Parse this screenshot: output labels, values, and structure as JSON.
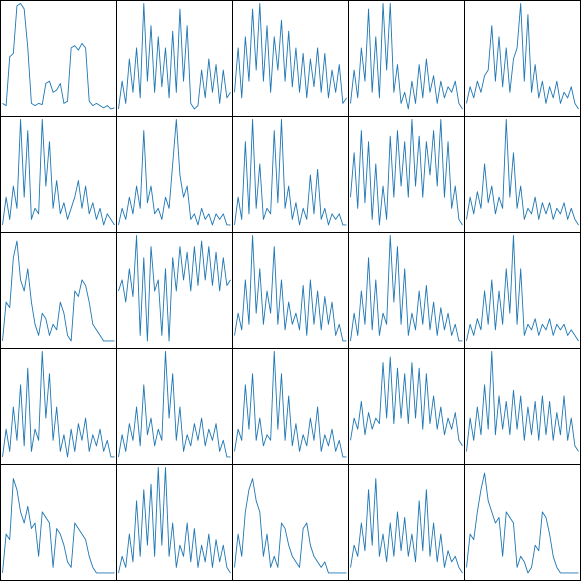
{
  "chart_data": [
    {
      "type": "line",
      "color": "#1f77b4",
      "ylim": [
        0,
        100
      ],
      "values": [
        10,
        8,
        52,
        55,
        98,
        100,
        95,
        60,
        10,
        8,
        10,
        9,
        28,
        30,
        20,
        22,
        28,
        10,
        12,
        60,
        62,
        58,
        64,
        60,
        12,
        8,
        10,
        8,
        6,
        8,
        5,
        6
      ]
    },
    {
      "type": "line",
      "color": "#1f77b4",
      "ylim": [
        0,
        100
      ],
      "values": [
        5,
        30,
        10,
        50,
        20,
        60,
        15,
        100,
        30,
        80,
        20,
        70,
        25,
        60,
        15,
        75,
        20,
        95,
        30,
        80,
        10,
        5,
        8,
        40,
        15,
        50,
        20,
        45,
        10,
        40,
        15,
        20
      ]
    },
    {
      "type": "line",
      "color": "#1f77b4",
      "ylim": [
        0,
        100
      ],
      "values": [
        20,
        60,
        15,
        70,
        30,
        95,
        40,
        100,
        30,
        80,
        20,
        70,
        40,
        85,
        30,
        75,
        25,
        60,
        20,
        55,
        15,
        50,
        25,
        60,
        20,
        55,
        15,
        40,
        20,
        45,
        10,
        15
      ]
    },
    {
      "type": "line",
      "color": "#1f77b4",
      "ylim": [
        0,
        100
      ],
      "values": [
        10,
        40,
        15,
        60,
        30,
        95,
        20,
        70,
        15,
        100,
        40,
        100,
        20,
        45,
        10,
        20,
        5,
        30,
        10,
        45,
        15,
        50,
        20,
        35,
        10,
        30,
        15,
        25,
        20,
        30,
        10,
        5
      ]
    },
    {
      "type": "line",
      "color": "#1f77b4",
      "ylim": [
        0,
        100
      ],
      "values": [
        10,
        25,
        15,
        30,
        20,
        35,
        40,
        80,
        30,
        70,
        25,
        60,
        20,
        50,
        60,
        100,
        30,
        90,
        20,
        45,
        15,
        30,
        10,
        25,
        15,
        30,
        10,
        20,
        15,
        25,
        10,
        5
      ]
    },
    {
      "type": "line",
      "color": "#1f77b4",
      "ylim": [
        0,
        100
      ],
      "values": [
        5,
        30,
        10,
        40,
        20,
        100,
        30,
        90,
        10,
        20,
        15,
        100,
        40,
        80,
        20,
        45,
        15,
        25,
        10,
        20,
        30,
        45,
        20,
        40,
        15,
        25,
        10,
        20,
        5,
        15,
        10,
        5
      ]
    },
    {
      "type": "line",
      "color": "#1f77b4",
      "ylim": [
        0,
        100
      ],
      "values": [
        5,
        20,
        10,
        30,
        15,
        40,
        20,
        90,
        25,
        40,
        15,
        20,
        10,
        30,
        20,
        60,
        100,
        50,
        30,
        40,
        10,
        15,
        5,
        20,
        10,
        15,
        5,
        15,
        10,
        15,
        5,
        5
      ]
    },
    {
      "type": "line",
      "color": "#1f77b4",
      "ylim": [
        0,
        100
      ],
      "values": [
        5,
        30,
        10,
        80,
        15,
        100,
        20,
        60,
        10,
        20,
        15,
        90,
        25,
        100,
        20,
        40,
        10,
        25,
        5,
        20,
        10,
        50,
        15,
        55,
        10,
        20,
        5,
        15,
        10,
        15,
        5,
        5
      ]
    },
    {
      "type": "line",
      "color": "#1f77b4",
      "ylim": [
        0,
        100
      ],
      "values": [
        30,
        70,
        20,
        90,
        25,
        80,
        10,
        60,
        5,
        40,
        10,
        85,
        30,
        90,
        40,
        80,
        30,
        100,
        40,
        85,
        30,
        80,
        50,
        90,
        40,
        100,
        30,
        80,
        20,
        40,
        10,
        5
      ]
    },
    {
      "type": "line",
      "color": "#1f77b4",
      "ylim": [
        0,
        100
      ],
      "values": [
        10,
        30,
        15,
        35,
        20,
        60,
        25,
        40,
        15,
        30,
        20,
        100,
        30,
        70,
        20,
        40,
        10,
        20,
        15,
        30,
        10,
        25,
        15,
        25,
        10,
        20,
        15,
        25,
        10,
        20,
        10,
        5
      ]
    },
    {
      "type": "line",
      "color": "#1f77b4",
      "ylim": [
        0,
        100
      ],
      "values": [
        5,
        40,
        35,
        80,
        95,
        60,
        50,
        70,
        40,
        20,
        10,
        30,
        25,
        10,
        20,
        15,
        40,
        30,
        10,
        5,
        50,
        45,
        60,
        55,
        40,
        20,
        15,
        10,
        5,
        5,
        5,
        5
      ]
    },
    {
      "type": "line",
      "color": "#1f77b4",
      "ylim": [
        0,
        100
      ],
      "values": [
        50,
        60,
        40,
        70,
        45,
        100,
        10,
        80,
        5,
        90,
        50,
        60,
        10,
        70,
        5,
        80,
        50,
        90,
        60,
        85,
        50,
        90,
        55,
        95,
        60,
        90,
        55,
        85,
        50,
        80,
        55,
        60
      ]
    },
    {
      "type": "line",
      "color": "#1f77b4",
      "ylim": [
        0,
        100
      ],
      "values": [
        10,
        30,
        15,
        60,
        20,
        100,
        30,
        70,
        20,
        50,
        30,
        90,
        20,
        60,
        15,
        40,
        20,
        30,
        15,
        55,
        10,
        60,
        20,
        50,
        15,
        45,
        20,
        40,
        10,
        20,
        5,
        5
      ]
    },
    {
      "type": "line",
      "color": "#1f77b4",
      "ylim": [
        0,
        100
      ],
      "values": [
        5,
        30,
        10,
        50,
        20,
        80,
        15,
        60,
        10,
        30,
        20,
        100,
        40,
        90,
        20,
        70,
        10,
        30,
        15,
        50,
        20,
        55,
        15,
        40,
        10,
        35,
        15,
        30,
        10,
        20,
        5,
        5
      ]
    },
    {
      "type": "line",
      "color": "#1f77b4",
      "ylim": [
        0,
        100
      ],
      "values": [
        5,
        20,
        10,
        25,
        15,
        50,
        20,
        60,
        15,
        50,
        20,
        70,
        30,
        100,
        20,
        70,
        10,
        20,
        15,
        25,
        10,
        20,
        15,
        25,
        10,
        20,
        15,
        20,
        10,
        15,
        10,
        5
      ]
    },
    {
      "type": "line",
      "color": "#1f77b4",
      "ylim": [
        0,
        100
      ],
      "values": [
        5,
        30,
        10,
        50,
        20,
        70,
        15,
        85,
        10,
        30,
        20,
        100,
        40,
        80,
        20,
        50,
        10,
        25,
        5,
        30,
        10,
        35,
        20,
        40,
        10,
        25,
        15,
        30,
        10,
        20,
        5,
        5
      ]
    },
    {
      "type": "line",
      "color": "#1f77b4",
      "ylim": [
        0,
        100
      ],
      "values": [
        5,
        25,
        10,
        35,
        20,
        50,
        15,
        70,
        25,
        40,
        15,
        30,
        20,
        100,
        40,
        80,
        20,
        50,
        10,
        25,
        15,
        35,
        20,
        40,
        15,
        30,
        20,
        35,
        10,
        20,
        5,
        5
      ]
    },
    {
      "type": "line",
      "color": "#1f77b4",
      "ylim": [
        0,
        100
      ],
      "values": [
        10,
        30,
        20,
        70,
        30,
        80,
        20,
        40,
        15,
        25,
        20,
        100,
        30,
        80,
        20,
        60,
        15,
        35,
        10,
        25,
        15,
        40,
        20,
        50,
        10,
        25,
        15,
        30,
        10,
        20,
        5,
        5
      ]
    },
    {
      "type": "line",
      "color": "#1f77b4",
      "ylim": [
        0,
        100
      ],
      "values": [
        20,
        40,
        30,
        55,
        25,
        45,
        30,
        40,
        35,
        90,
        40,
        95,
        35,
        85,
        40,
        80,
        35,
        90,
        40,
        85,
        30,
        80,
        35,
        60,
        30,
        50,
        25,
        40,
        30,
        45,
        20,
        15
      ]
    },
    {
      "type": "line",
      "color": "#1f77b4",
      "ylim": [
        0,
        100
      ],
      "values": [
        10,
        40,
        20,
        50,
        25,
        70,
        30,
        100,
        25,
        60,
        30,
        55,
        25,
        65,
        30,
        60,
        20,
        50,
        25,
        55,
        20,
        60,
        25,
        55,
        20,
        45,
        25,
        60,
        20,
        40,
        15,
        10
      ]
    },
    {
      "type": "line",
      "color": "#1f77b4",
      "ylim": [
        0,
        100
      ],
      "values": [
        5,
        40,
        35,
        90,
        80,
        60,
        50,
        65,
        45,
        50,
        20,
        60,
        55,
        50,
        10,
        45,
        40,
        30,
        15,
        10,
        50,
        45,
        40,
        35,
        20,
        10,
        5,
        5,
        5,
        5,
        5,
        5
      ]
    },
    {
      "type": "line",
      "color": "#1f77b4",
      "ylim": [
        0,
        100
      ],
      "values": [
        5,
        20,
        10,
        40,
        15,
        70,
        20,
        80,
        30,
        85,
        20,
        100,
        30,
        100,
        20,
        50,
        10,
        30,
        20,
        50,
        15,
        45,
        10,
        30,
        15,
        40,
        10,
        35,
        15,
        30,
        10,
        5
      ]
    },
    {
      "type": "line",
      "color": "#1f77b4",
      "ylim": [
        0,
        100
      ],
      "values": [
        10,
        40,
        20,
        60,
        80,
        90,
        70,
        60,
        20,
        40,
        10,
        20,
        10,
        50,
        45,
        30,
        20,
        15,
        10,
        45,
        50,
        30,
        20,
        15,
        10,
        15,
        5,
        5,
        5,
        5,
        5,
        5
      ]
    },
    {
      "type": "line",
      "color": "#1f77b4",
      "ylim": [
        0,
        100
      ],
      "values": [
        10,
        30,
        20,
        50,
        25,
        80,
        30,
        90,
        20,
        40,
        15,
        50,
        20,
        60,
        25,
        55,
        20,
        40,
        15,
        70,
        25,
        80,
        20,
        50,
        15,
        40,
        10,
        25,
        15,
        20,
        10,
        5
      ]
    },
    {
      "type": "line",
      "color": "#1f77b4",
      "ylim": [
        0,
        100
      ],
      "values": [
        10,
        40,
        35,
        60,
        80,
        95,
        70,
        60,
        50,
        55,
        20,
        60,
        55,
        50,
        10,
        20,
        15,
        5,
        10,
        30,
        25,
        60,
        55,
        40,
        20,
        10,
        5,
        5,
        5,
        5,
        5,
        5
      ]
    }
  ]
}
